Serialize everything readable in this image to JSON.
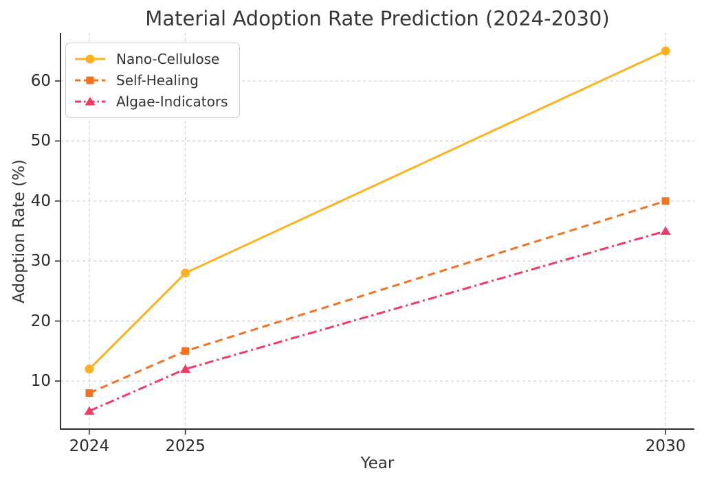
{
  "figure": {
    "background": "#ffffff"
  },
  "chart_data": {
    "type": "line",
    "title": "Material Adoption Rate Prediction (2024-2030)",
    "xlabel": "Year",
    "ylabel": "Adoption Rate (%)",
    "x": [
      2024,
      2025,
      2030
    ],
    "xtick_labels": [
      "2024",
      "2025",
      "2030"
    ],
    "yticks": [
      10,
      20,
      30,
      40,
      50,
      60
    ],
    "ytick_labels": [
      "10",
      "20",
      "30",
      "40",
      "50",
      "60"
    ],
    "xlim": [
      2023.7,
      2030.3
    ],
    "ylim": [
      2,
      68
    ],
    "grid": true,
    "grid_style": "dashed",
    "grid_color": "#cfcfcf",
    "axis_color": "#2e2e2e",
    "text_color": "#333333",
    "legend_position": "upper-left",
    "series": [
      {
        "name": "Nano-Cellulose",
        "values": [
          12,
          28,
          65
        ],
        "color": "#FFB11E",
        "line_style": "solid",
        "marker": "circle"
      },
      {
        "name": "Self-Healing",
        "values": [
          8,
          15,
          40
        ],
        "color": "#F4711F",
        "line_style": "dashed",
        "marker": "square"
      },
      {
        "name": "Algae-Indicators",
        "values": [
          5,
          12,
          35
        ],
        "color": "#F23A65",
        "line_style": "dashdot",
        "marker": "triangle"
      }
    ]
  }
}
